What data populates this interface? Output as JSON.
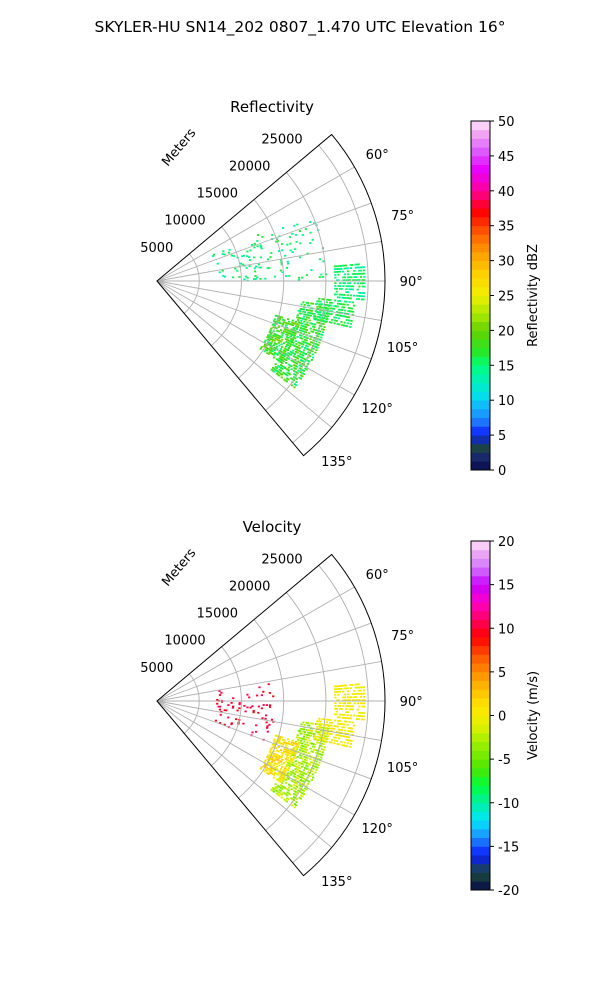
{
  "figure_title": "SKYLER-HU  SN14_202  0807_1.470 UTC Elevation 16°",
  "colors": {
    "grid": "#b0b0b0",
    "frame": "#000000"
  },
  "chart_data": [
    {
      "type": "heatmap",
      "title": "Reflectivity",
      "radial_label": "Meters",
      "range_ticks": [
        "5000",
        "10000",
        "15000",
        "20000",
        "25000"
      ],
      "range_values": [
        5000,
        10000,
        15000,
        20000,
        25000
      ],
      "rlim": [
        0,
        27000
      ],
      "azimuth_ticks": [
        "60°",
        "75°",
        "90°",
        "105°",
        "120°",
        "135°"
      ],
      "azimuth_values": [
        60,
        75,
        90,
        105,
        120,
        135
      ],
      "azimuth_range": [
        50,
        140
      ],
      "grid": true,
      "colorbar": {
        "label": "Reflectivity dBZ",
        "min": 0,
        "max": 50,
        "ticks": [
          "0",
          "5",
          "10",
          "15",
          "20",
          "25",
          "30",
          "35",
          "40",
          "45",
          "50"
        ],
        "tick_values": [
          0,
          5,
          10,
          15,
          20,
          25,
          30,
          35,
          40,
          45,
          50
        ]
      },
      "echo_regions": [
        {
          "az": [
            98,
            128
          ],
          "range": [
            17000,
            20500
          ],
          "value": 17,
          "spread": 3
        },
        {
          "az": [
            96,
            104
          ],
          "range": [
            19000,
            23500
          ],
          "value": 16,
          "spread": 2
        },
        {
          "az": [
            85,
            95
          ],
          "range": [
            21000,
            24500
          ],
          "value": 15,
          "spread": 2
        },
        {
          "az": [
            106,
            124
          ],
          "range": [
            14500,
            17500
          ],
          "value": 18,
          "spread": 3
        },
        {
          "az": [
            64,
            90
          ],
          "range": [
            7000,
            20000
          ],
          "value": 15,
          "spread": 2,
          "sparse": true
        }
      ]
    },
    {
      "type": "heatmap",
      "title": "Velocity",
      "radial_label": "Meters",
      "range_ticks": [
        "5000",
        "10000",
        "15000",
        "20000",
        "25000"
      ],
      "range_values": [
        5000,
        10000,
        15000,
        20000,
        25000
      ],
      "rlim": [
        0,
        27000
      ],
      "azimuth_ticks": [
        "60°",
        "75°",
        "90°",
        "105°",
        "120°",
        "135°"
      ],
      "azimuth_values": [
        60,
        75,
        90,
        105,
        120,
        135
      ],
      "azimuth_range": [
        50,
        140
      ],
      "grid": true,
      "colorbar": {
        "label": "Velocity (m/s)",
        "min": -20,
        "max": 20,
        "ticks": [
          "-20",
          "-15",
          "-10",
          "-5",
          "0",
          "5",
          "10",
          "15",
          "20"
        ],
        "tick_values": [
          -20,
          -15,
          -10,
          -5,
          0,
          5,
          10,
          15,
          20
        ]
      },
      "echo_regions": [
        {
          "az": [
            98,
            128
          ],
          "range": [
            17000,
            20500
          ],
          "value": -3,
          "spread": 2
        },
        {
          "az": [
            96,
            104
          ],
          "range": [
            19000,
            23500
          ],
          "value": 0,
          "spread": 1
        },
        {
          "az": [
            85,
            95
          ],
          "range": [
            21000,
            24500
          ],
          "value": 0,
          "spread": 1
        },
        {
          "az": [
            106,
            124
          ],
          "range": [
            14500,
            17500
          ],
          "value": 1,
          "spread": 2
        },
        {
          "az": [
            80,
            110
          ],
          "range": [
            7000,
            14000
          ],
          "value": 10,
          "spread": 1,
          "sparse": true
        }
      ]
    }
  ]
}
